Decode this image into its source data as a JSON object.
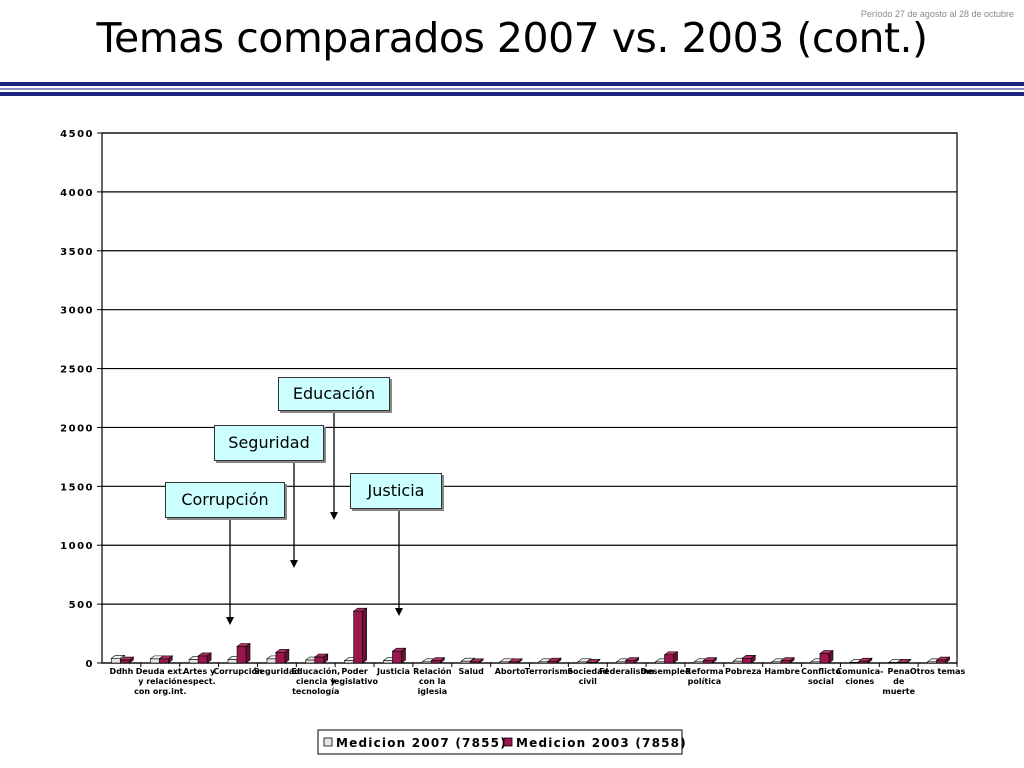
{
  "header": {
    "period": "Período 27 de agosto al 28 de octubre",
    "title": "Temas comparados 2007 vs. 2003 (cont.)"
  },
  "callouts": {
    "educacion": "Educación",
    "seguridad": "Seguridad",
    "corrupcion": "Corrupción",
    "justicia": "Justicia"
  },
  "colors": {
    "series_2007": "#e6e6e6",
    "series_2003": "#99174d",
    "rule_dark": "#1a237e",
    "callout_bg": "#ccffff"
  },
  "chart_data": {
    "type": "bar",
    "ylim": [
      0,
      4500
    ],
    "yticks": [
      0,
      500,
      1000,
      1500,
      2000,
      2500,
      3000,
      3500,
      4000,
      4500
    ],
    "ytick_labels": [
      "0",
      "500",
      "1000",
      "1500",
      "2000",
      "2500",
      "3000",
      "3500",
      "4000",
      "4500"
    ],
    "grid": true,
    "legend": "bottom",
    "categories": [
      "Ddhh",
      "Deuda ext. y relación con org.int.",
      "Artes y espect.",
      "Corrupción",
      "Seguridad",
      "Educación, ciencia y tecnología",
      "Poder legislativo",
      "Justicia",
      "Relación con la iglesia",
      "Salud",
      "Aborto",
      "Terrorismo",
      "Sociedad civil",
      "Federalismo",
      "Desempleo",
      "Reforma política",
      "Pobreza",
      "Hambre",
      "Conflicto social",
      "Comunica-ciones",
      "Pena de muerte",
      "Otros temas"
    ],
    "category_lines": [
      [
        "Ddhh"
      ],
      [
        "Deuda ext.",
        "y relación",
        "con org.int."
      ],
      [
        "Artes y",
        "espect."
      ],
      [
        "Corrupción"
      ],
      [
        "Seguridad"
      ],
      [
        "Educación,",
        "ciencia y",
        "tecnología"
      ],
      [
        "Poder",
        "legislativo"
      ],
      [
        "Justicia"
      ],
      [
        "Relación",
        "con la",
        "iglesia"
      ],
      [
        "Salud"
      ],
      [
        "Aborto"
      ],
      [
        "Terrorismo"
      ],
      [
        "Sociedad",
        "civil"
      ],
      [
        "Federalismo"
      ],
      [
        "Desempleo"
      ],
      [
        "Reforma",
        "política"
      ],
      [
        "Pobreza"
      ],
      [
        "Hambre"
      ],
      [
        "Conflicto",
        "social"
      ],
      [
        "Comunica-",
        "ciones"
      ],
      [
        "Pena",
        "de",
        "muerte"
      ],
      [
        "Otros temas"
      ]
    ],
    "series": [
      {
        "name": "Medicion 2007 (7855)",
        "values": [
          40,
          35,
          30,
          30,
          35,
          25,
          20,
          20,
          10,
          15,
          10,
          10,
          10,
          10,
          10,
          10,
          15,
          10,
          10,
          5,
          5,
          10
        ]
      },
      {
        "name": "Medicion 2003 (7858)",
        "values": [
          25,
          35,
          60,
          140,
          90,
          50,
          440,
          100,
          20,
          10,
          10,
          15,
          5,
          20,
          70,
          20,
          40,
          20,
          80,
          15,
          5,
          25
        ]
      }
    ]
  }
}
